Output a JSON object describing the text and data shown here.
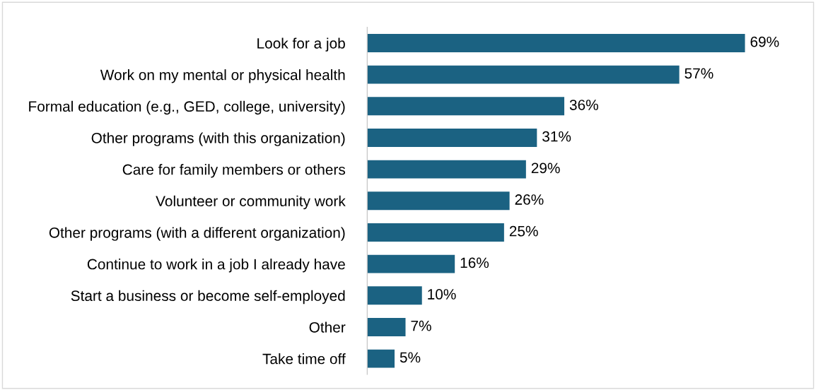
{
  "chart_data": {
    "type": "bar",
    "orientation": "horizontal",
    "categories": [
      "Look for a job",
      "Work on my mental or physical health",
      "Formal education (e.g., GED, college, university)",
      "Other programs (with this organization)",
      "Care for family members or others",
      "Volunteer or community work",
      "Other programs (with a different organization)",
      "Continue to work in a job I already have",
      "Start a business or become self-employed",
      "Other",
      "Take time off"
    ],
    "values": [
      69,
      57,
      36,
      31,
      29,
      26,
      25,
      16,
      10,
      7,
      5
    ],
    "value_labels": [
      "69%",
      "57%",
      "36%",
      "31%",
      "29%",
      "26%",
      "25%",
      "16%",
      "10%",
      "7%",
      "5%"
    ],
    "color": "#1b6282",
    "grid": false,
    "legend": false,
    "tick_labels": "y"
  }
}
